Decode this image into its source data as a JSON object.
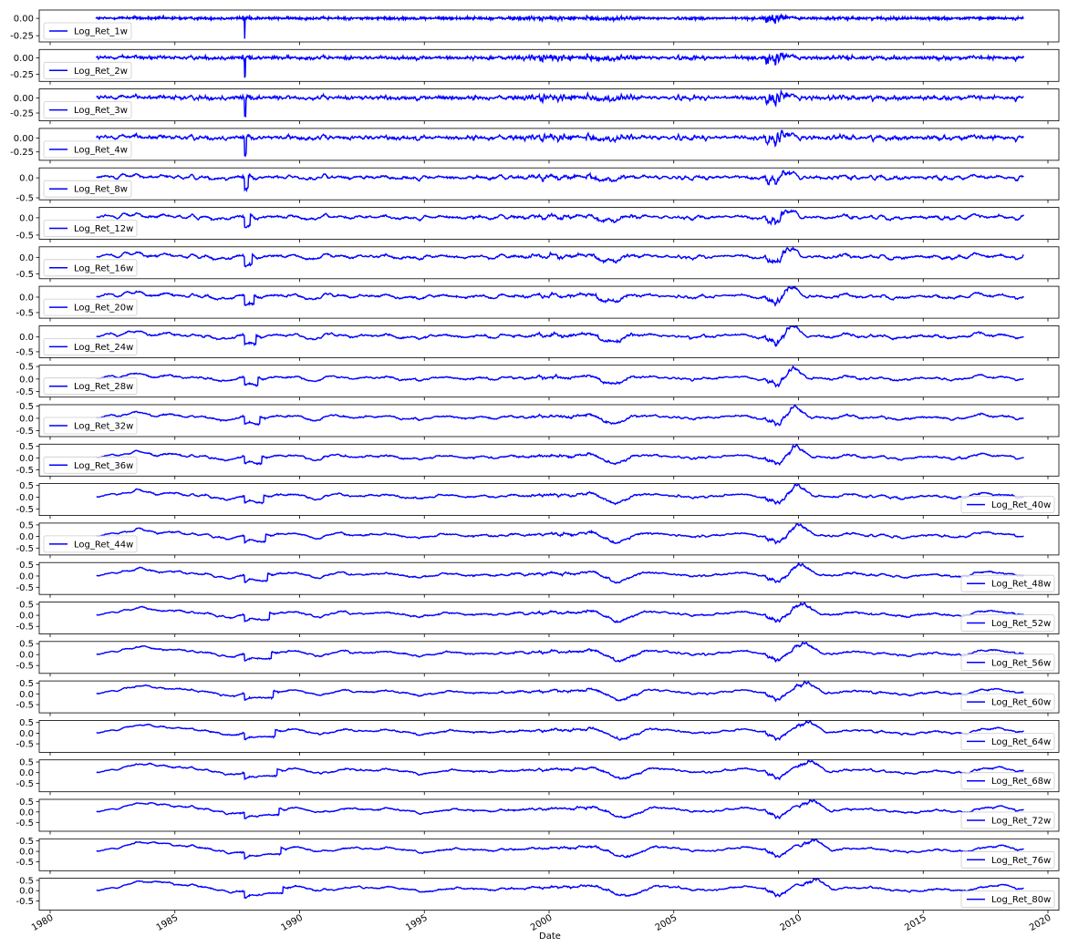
{
  "xlabel": "Date",
  "x_ticks": [
    "1980",
    "1985",
    "1990",
    "1995",
    "2000",
    "2005",
    "2010",
    "2015",
    "2020"
  ],
  "line_color": "#0000ff",
  "chart_data": {
    "type": "line",
    "x": "weekly dates, 1981-10 to 2019-02",
    "xlim": [
      1980,
      2020
    ],
    "xlabel": "Date",
    "x_ticks": [
      1980,
      1985,
      1990,
      1995,
      2000,
      2005,
      2010,
      2015,
      2020
    ],
    "series": [
      {
        "name": "Log_Ret_1w",
        "horizon_weeks": 1,
        "yticks": [
          "0.00",
          "-0.25"
        ],
        "ylim": [
          -0.34,
          0.12
        ],
        "legend": "left",
        "keypoints": [
          [
            1981.8,
            0.0
          ],
          [
            1987.8,
            -0.3
          ],
          [
            1991.0,
            0.0
          ],
          [
            1998.7,
            -0.05
          ],
          [
            2002.6,
            -0.06
          ],
          [
            2008.8,
            -0.15
          ],
          [
            2008.95,
            0.12
          ],
          [
            2010.4,
            -0.05
          ],
          [
            2019.0,
            0.01
          ]
        ]
      },
      {
        "name": "Log_Ret_2w",
        "horizon_weeks": 2,
        "yticks": [
          "0.00",
          "-0.25"
        ],
        "ylim": [
          -0.36,
          0.13
        ],
        "legend": "left",
        "keypoints": [
          [
            1981.8,
            0.0
          ],
          [
            1987.8,
            -0.33
          ],
          [
            1998.7,
            -0.08
          ],
          [
            2002.6,
            -0.09
          ],
          [
            2008.8,
            -0.2
          ],
          [
            2009.1,
            0.13
          ],
          [
            2019.0,
            0.02
          ]
        ]
      },
      {
        "name": "Log_Ret_3w",
        "horizon_weeks": 3,
        "yticks": [
          "0.00",
          "-0.25"
        ],
        "ylim": [
          -0.38,
          0.15
        ],
        "legend": "left",
        "keypoints": [
          [
            1981.8,
            0.0
          ],
          [
            1987.8,
            -0.32
          ],
          [
            1998.7,
            -0.1
          ],
          [
            2002.6,
            -0.12
          ],
          [
            2008.8,
            -0.25
          ],
          [
            2009.2,
            0.15
          ],
          [
            2019.0,
            0.05
          ]
        ]
      },
      {
        "name": "Log_Ret_4w",
        "horizon_weeks": 4,
        "yticks": [
          "0.00",
          "-0.25"
        ],
        "ylim": [
          -0.4,
          0.17
        ],
        "legend": "left",
        "keypoints": [
          [
            1981.8,
            0.0
          ],
          [
            1987.8,
            -0.3
          ],
          [
            1998.7,
            -0.12
          ],
          [
            2002.6,
            -0.14
          ],
          [
            2008.8,
            -0.28
          ],
          [
            2009.2,
            0.17
          ],
          [
            2019.0,
            0.06
          ]
        ]
      },
      {
        "name": "Log_Ret_8w",
        "horizon_weeks": 8,
        "yticks": [
          "0.0",
          "-0.5"
        ],
        "ylim": [
          -0.55,
          0.25
        ],
        "legend": "left",
        "keypoints": [
          [
            1981.8,
            0.0
          ],
          [
            1982.6,
            0.15
          ],
          [
            1987.8,
            -0.38
          ],
          [
            2002.6,
            -0.2
          ],
          [
            2008.8,
            -0.4
          ],
          [
            2009.4,
            0.22
          ],
          [
            2019.0,
            0.0
          ]
        ]
      },
      {
        "name": "Log_Ret_12w",
        "horizon_weeks": 12,
        "yticks": [
          "0.0",
          "-0.5"
        ],
        "ylim": [
          -0.62,
          0.3
        ],
        "legend": "left",
        "keypoints": [
          [
            1981.8,
            0.0
          ],
          [
            1982.8,
            0.18
          ],
          [
            1987.9,
            -0.4
          ],
          [
            2002.6,
            -0.25
          ],
          [
            2008.9,
            -0.52
          ],
          [
            2009.5,
            0.25
          ],
          [
            2019.0,
            -0.05
          ]
        ]
      },
      {
        "name": "Log_Ret_16w",
        "horizon_weeks": 16,
        "yticks": [
          "0.0",
          "-0.5"
        ],
        "ylim": [
          -0.65,
          0.32
        ],
        "legend": "left",
        "keypoints": [
          [
            1981.8,
            0.0
          ],
          [
            1982.9,
            0.22
          ],
          [
            1987.9,
            -0.38
          ],
          [
            2002.6,
            -0.28
          ],
          [
            2008.9,
            -0.55
          ],
          [
            2009.6,
            0.28
          ],
          [
            2019.0,
            -0.12
          ]
        ]
      },
      {
        "name": "Log_Ret_20w",
        "horizon_weeks": 20,
        "yticks": [
          "0.0",
          "-0.5"
        ],
        "ylim": [
          -0.68,
          0.35
        ],
        "legend": "left",
        "keypoints": [
          [
            1981.8,
            0.0
          ],
          [
            1983.0,
            0.25
          ],
          [
            1987.9,
            -0.35
          ],
          [
            2002.6,
            -0.3
          ],
          [
            2009.0,
            -0.6
          ],
          [
            2009.7,
            0.32
          ],
          [
            2019.0,
            -0.12
          ]
        ]
      },
      {
        "name": "Log_Ret_24w",
        "horizon_weeks": 24,
        "yticks": [
          "0.0",
          "-0.5"
        ],
        "ylim": [
          -0.7,
          0.38
        ],
        "legend": "left",
        "keypoints": [
          [
            1981.8,
            0.0
          ],
          [
            1983.1,
            0.28
          ],
          [
            1987.9,
            -0.33
          ],
          [
            2002.6,
            -0.33
          ],
          [
            2009.0,
            -0.62
          ],
          [
            2009.8,
            0.35
          ],
          [
            2019.0,
            -0.05
          ]
        ]
      },
      {
        "name": "Log_Ret_28w",
        "horizon_weeks": 28,
        "yticks": [
          "0.5",
          "0.0",
          "-0.5"
        ],
        "ylim": [
          -0.72,
          0.55
        ],
        "legend": "left",
        "keypoints": [
          [
            1981.8,
            0.0
          ],
          [
            1983.2,
            0.3
          ],
          [
            1987.9,
            -0.32
          ],
          [
            2002.6,
            -0.35
          ],
          [
            2009.1,
            -0.65
          ],
          [
            2009.9,
            0.4
          ],
          [
            2019.0,
            -0.05
          ]
        ]
      },
      {
        "name": "Log_Ret_32w",
        "horizon_weeks": 32,
        "yticks": [
          "0.5",
          "0.0",
          "-0.5"
        ],
        "ylim": [
          -0.74,
          0.55
        ],
        "legend": "left",
        "keypoints": [
          [
            1981.8,
            0.0
          ],
          [
            1983.3,
            0.35
          ],
          [
            1987.9,
            -0.3
          ],
          [
            2002.6,
            -0.36
          ],
          [
            2009.1,
            -0.65
          ],
          [
            2009.9,
            0.42
          ],
          [
            2019.0,
            -0.05
          ]
        ]
      },
      {
        "name": "Log_Ret_36w",
        "horizon_weeks": 36,
        "yticks": [
          "0.5",
          "0.0",
          "-0.5"
        ],
        "ylim": [
          -0.76,
          0.58
        ],
        "legend": "left",
        "keypoints": [
          [
            1981.8,
            0.0
          ],
          [
            1983.4,
            0.4
          ],
          [
            1987.9,
            -0.3
          ],
          [
            2002.7,
            -0.38
          ],
          [
            2009.1,
            -0.68
          ],
          [
            2010.0,
            0.45
          ],
          [
            2019.0,
            0.0
          ]
        ]
      },
      {
        "name": "Log_Ret_40w",
        "horizon_weeks": 40,
        "yticks": [
          "0.5",
          "0.0",
          "-0.5"
        ],
        "ylim": [
          -0.78,
          0.58
        ],
        "legend": "right",
        "keypoints": [
          [
            1981.8,
            0.0
          ],
          [
            1983.5,
            0.42
          ],
          [
            1987.9,
            -0.3
          ],
          [
            2002.7,
            -0.4
          ],
          [
            2009.1,
            -0.7
          ],
          [
            2010.0,
            0.45
          ],
          [
            2019.0,
            0.0
          ]
        ]
      },
      {
        "name": "Log_Ret_44w",
        "horizon_weeks": 44,
        "yticks": [
          "0.5",
          "0.0",
          "-0.5"
        ],
        "ylim": [
          -0.8,
          0.58
        ],
        "legend": "left",
        "keypoints": [
          [
            1981.8,
            0.0
          ],
          [
            1983.5,
            0.45
          ],
          [
            1987.9,
            -0.3
          ],
          [
            2002.7,
            -0.42
          ],
          [
            2009.1,
            -0.72
          ],
          [
            2010.1,
            0.48
          ],
          [
            2019.0,
            0.0
          ]
        ]
      },
      {
        "name": "Log_Ret_48w",
        "horizon_weeks": 48,
        "yticks": [
          "0.5",
          "0.0",
          "-0.5"
        ],
        "ylim": [
          -0.82,
          0.6
        ],
        "legend": "right",
        "keypoints": [
          [
            1981.8,
            0.05
          ],
          [
            1983.6,
            0.48
          ],
          [
            1987.9,
            -0.28
          ],
          [
            2002.7,
            -0.43
          ],
          [
            2009.1,
            -0.74
          ],
          [
            2010.1,
            0.5
          ],
          [
            2019.0,
            0.05
          ]
        ]
      },
      {
        "name": "Log_Ret_52w",
        "horizon_weeks": 52,
        "yticks": [
          "0.5",
          "0.0",
          "-0.5"
        ],
        "ylim": [
          -0.84,
          0.6
        ],
        "legend": "right",
        "keypoints": [
          [
            1981.8,
            0.1
          ],
          [
            1983.6,
            0.5
          ],
          [
            1987.9,
            -0.25
          ],
          [
            2002.7,
            -0.44
          ],
          [
            2009.1,
            -0.76
          ],
          [
            2010.1,
            0.52
          ],
          [
            2019.0,
            0.05
          ]
        ]
      },
      {
        "name": "Log_Ret_56w",
        "horizon_weeks": 56,
        "yticks": [
          "0.5",
          "0.0",
          "-0.5"
        ],
        "ylim": [
          -0.86,
          0.6
        ],
        "legend": "right",
        "keypoints": [
          [
            1981.8,
            0.12
          ],
          [
            1983.7,
            0.5
          ],
          [
            1987.9,
            -0.22
          ],
          [
            2002.8,
            -0.45
          ],
          [
            2009.2,
            -0.78
          ],
          [
            2010.2,
            0.52
          ],
          [
            2019.0,
            0.08
          ]
        ]
      },
      {
        "name": "Log_Ret_60w",
        "horizon_weeks": 60,
        "yticks": [
          "0.5",
          "0.0",
          "-0.5"
        ],
        "ylim": [
          -0.88,
          0.6
        ],
        "legend": "right",
        "keypoints": [
          [
            1981.8,
            0.15
          ],
          [
            1983.7,
            0.48
          ],
          [
            1987.9,
            -0.2
          ],
          [
            2002.8,
            -0.46
          ],
          [
            2009.2,
            -0.8
          ],
          [
            2010.2,
            0.5
          ],
          [
            2019.0,
            0.08
          ]
        ]
      },
      {
        "name": "Log_Ret_64w",
        "horizon_weeks": 64,
        "yticks": [
          "0.5",
          "0.0",
          "-0.5"
        ],
        "ylim": [
          -0.9,
          0.6
        ],
        "legend": "right",
        "keypoints": [
          [
            1981.8,
            0.18
          ],
          [
            1983.8,
            0.46
          ],
          [
            1987.9,
            -0.18
          ],
          [
            2002.8,
            -0.48
          ],
          [
            2009.2,
            -0.82
          ],
          [
            2010.3,
            0.48
          ],
          [
            2019.0,
            0.1
          ]
        ]
      },
      {
        "name": "Log_Ret_68w",
        "horizon_weeks": 68,
        "yticks": [
          "0.5",
          "0.0",
          "-0.5"
        ],
        "ylim": [
          -0.9,
          0.6
        ],
        "legend": "right",
        "keypoints": [
          [
            1981.8,
            0.2
          ],
          [
            1983.9,
            0.45
          ],
          [
            1987.9,
            -0.15
          ],
          [
            2002.8,
            -0.48
          ],
          [
            2009.2,
            -0.84
          ],
          [
            2010.3,
            0.46
          ],
          [
            2019.0,
            0.1
          ]
        ]
      },
      {
        "name": "Log_Ret_72w",
        "horizon_weeks": 72,
        "yticks": [
          "0.5",
          "0.0",
          "-0.5"
        ],
        "ylim": [
          -0.92,
          0.6
        ],
        "legend": "right",
        "keypoints": [
          [
            1981.8,
            0.2
          ],
          [
            1983.9,
            0.45
          ],
          [
            1987.9,
            -0.12
          ],
          [
            2002.8,
            -0.5
          ],
          [
            2009.2,
            -0.85
          ],
          [
            2010.4,
            0.45
          ],
          [
            2019.0,
            0.12
          ]
        ]
      },
      {
        "name": "Log_Ret_76w",
        "horizon_weeks": 76,
        "yticks": [
          "0.5",
          "0.0",
          "-0.5"
        ],
        "ylim": [
          -0.92,
          0.6
        ],
        "legend": "right",
        "keypoints": [
          [
            1981.8,
            0.2
          ],
          [
            1984.0,
            0.45
          ],
          [
            1987.9,
            -0.1
          ],
          [
            2002.9,
            -0.52
          ],
          [
            2009.3,
            -0.86
          ],
          [
            2010.4,
            0.44
          ],
          [
            2019.0,
            0.12
          ]
        ]
      },
      {
        "name": "Log_Ret_80w",
        "horizon_weeks": 80,
        "yticks": [
          "0.5",
          "0.0",
          "-0.5"
        ],
        "ylim": [
          -0.94,
          0.6
        ],
        "legend": "right",
        "keypoints": [
          [
            1981.8,
            0.22
          ],
          [
            1984.0,
            0.45
          ],
          [
            1987.9,
            -0.08
          ],
          [
            2002.9,
            -0.54
          ],
          [
            2009.3,
            -0.88
          ],
          [
            2010.5,
            0.44
          ],
          [
            2019.0,
            0.14
          ]
        ]
      }
    ]
  }
}
